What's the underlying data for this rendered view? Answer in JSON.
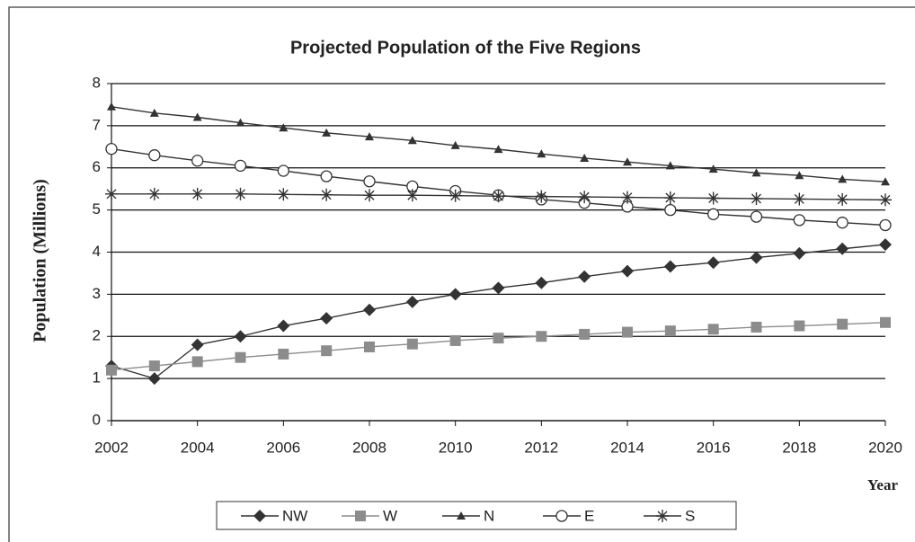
{
  "chart_data": {
    "type": "line",
    "title": "Projected Population of the Five Regions",
    "ylabel": "Population (Millions)",
    "xlabel": "Year",
    "x": [
      2002,
      2003,
      2004,
      2005,
      2006,
      2007,
      2008,
      2009,
      2010,
      2011,
      2012,
      2013,
      2014,
      2015,
      2016,
      2017,
      2018,
      2019,
      2020
    ],
    "xlim": [
      2002,
      2020
    ],
    "xticks": [
      2002,
      2004,
      2006,
      2008,
      2010,
      2012,
      2014,
      2016,
      2018,
      2020
    ],
    "ylim": [
      0,
      8
    ],
    "yticks": [
      0,
      1,
      2,
      3,
      4,
      5,
      6,
      7,
      8
    ],
    "grid": true,
    "legend": "bottom",
    "series": [
      {
        "name": "NW",
        "color": "#333333",
        "marker": "diamond",
        "values": [
          1.3,
          1.0,
          1.8,
          2.0,
          2.25,
          2.43,
          2.63,
          2.82,
          3.0,
          3.15,
          3.27,
          3.42,
          3.55,
          3.66,
          3.75,
          3.87,
          3.97,
          4.08,
          4.18
        ]
      },
      {
        "name": "W",
        "color": "#8c8c8c",
        "marker": "square",
        "values": [
          1.2,
          1.3,
          1.4,
          1.5,
          1.58,
          1.66,
          1.75,
          1.82,
          1.9,
          1.96,
          2.0,
          2.05,
          2.1,
          2.13,
          2.17,
          2.22,
          2.25,
          2.29,
          2.33
        ]
      },
      {
        "name": "N",
        "color": "#333333",
        "marker": "triangle",
        "values": [
          7.45,
          7.3,
          7.2,
          7.07,
          6.95,
          6.83,
          6.74,
          6.65,
          6.53,
          6.44,
          6.33,
          6.23,
          6.14,
          6.05,
          5.97,
          5.88,
          5.82,
          5.73,
          5.67
        ]
      },
      {
        "name": "E",
        "color": "#333333",
        "marker": "circle",
        "values": [
          6.45,
          6.3,
          6.17,
          6.05,
          5.93,
          5.8,
          5.68,
          5.56,
          5.45,
          5.35,
          5.25,
          5.17,
          5.08,
          5.0,
          4.9,
          4.84,
          4.76,
          4.7,
          4.64
        ]
      },
      {
        "name": "S",
        "color": "#333333",
        "marker": "asterisk",
        "values": [
          5.38,
          5.38,
          5.38,
          5.38,
          5.37,
          5.36,
          5.35,
          5.35,
          5.34,
          5.33,
          5.32,
          5.31,
          5.3,
          5.29,
          5.28,
          5.27,
          5.26,
          5.25,
          5.24
        ]
      }
    ]
  }
}
